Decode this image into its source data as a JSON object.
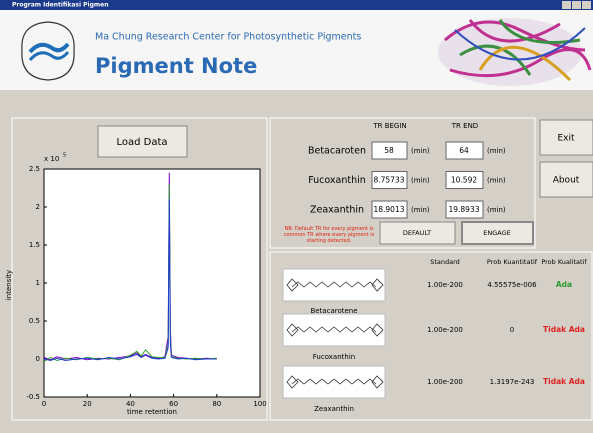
{
  "window": {
    "title": "Program Identifikasi Pigmen"
  },
  "header": {
    "subtitle": "Ma Chung Research Center for Photosynthetic Pigments",
    "title": "Pigment Note"
  },
  "buttons": {
    "load": "Load Data",
    "exit": "Exit",
    "about": "About",
    "default": "DEFAULT",
    "engage": "ENGAGE"
  },
  "tr_panel": {
    "begin_header": "TR BEGIN",
    "end_header": "TR END",
    "unit": "(min)",
    "rows": [
      {
        "name": "Betacaroten",
        "begin": "58",
        "end": "64"
      },
      {
        "name": "Fucoxanthin",
        "begin": "8.75733",
        "end": "10.592"
      },
      {
        "name": "Zeaxanthin",
        "begin": "18.9013",
        "end": "19.8933"
      }
    ],
    "note": [
      "NB: Default TR for every pigment is",
      "common TR where every pigment is",
      "starting detected."
    ]
  },
  "results": {
    "headers": [
      "Standard",
      "Prob Kuantitatif",
      "Prob Kualitatif"
    ],
    "rows": [
      {
        "name": "Betacarotene",
        "standard": "1.00e-200",
        "quant": "4.55575e-006",
        "qual": "Ada"
      },
      {
        "name": "Fucoxanthin",
        "standard": "1.00e-200",
        "quant": "0",
        "qual": "Tidak Ada"
      },
      {
        "name": "Zeaxanthin",
        "standard": "1.00e-200",
        "quant": "1.3197e-243",
        "qual": "Tidak Ada"
      }
    ]
  },
  "chart_data": {
    "type": "line",
    "xlabel": "time retention",
    "ylabel": "intensity",
    "exponent": {
      "base": "x 10",
      "power": "5"
    },
    "xlim": [
      0,
      100
    ],
    "ylim": [
      -0.5,
      2.5
    ],
    "xticks": [
      0,
      20,
      40,
      60,
      80,
      100
    ],
    "yticks": [
      -0.5,
      0,
      0.5,
      1,
      1.5,
      2,
      2.5
    ],
    "x": [
      0,
      3,
      6,
      10,
      15,
      20,
      25,
      30,
      35,
      40,
      43,
      45,
      47,
      50,
      53,
      56,
      57.5,
      58,
      58.5,
      59,
      62,
      66,
      70,
      75,
      80
    ],
    "series": [
      {
        "color": "#8000c0",
        "values": [
          0.02,
          -0.01,
          0.03,
          0,
          0.02,
          -0.01,
          0.01,
          0,
          0.02,
          0.04,
          0.08,
          0.03,
          0.06,
          0.02,
          0.01,
          0.03,
          0.3,
          2.45,
          0.4,
          0.05,
          0.02,
          0.01,
          0,
          0.01,
          0
        ]
      },
      {
        "color": "#2ca02c",
        "values": [
          -0.03,
          0.02,
          -0.02,
          0.01,
          -0.01,
          0.02,
          0,
          0.01,
          -0.01,
          0.05,
          0.1,
          0.04,
          0.12,
          0.03,
          0.02,
          0.02,
          0.2,
          2.3,
          0.3,
          0.03,
          0.01,
          0,
          0.01,
          0,
          0.01
        ]
      },
      {
        "color": "#1f3fcf",
        "values": [
          0,
          -0.02,
          0.01,
          -0.02,
          0,
          0.01,
          -0.01,
          0.02,
          0,
          0.03,
          0.06,
          0.02,
          0.05,
          0.01,
          0,
          0.01,
          0.15,
          2.1,
          0.2,
          0.02,
          0,
          0.01,
          -0.01,
          0,
          0
        ]
      }
    ]
  }
}
